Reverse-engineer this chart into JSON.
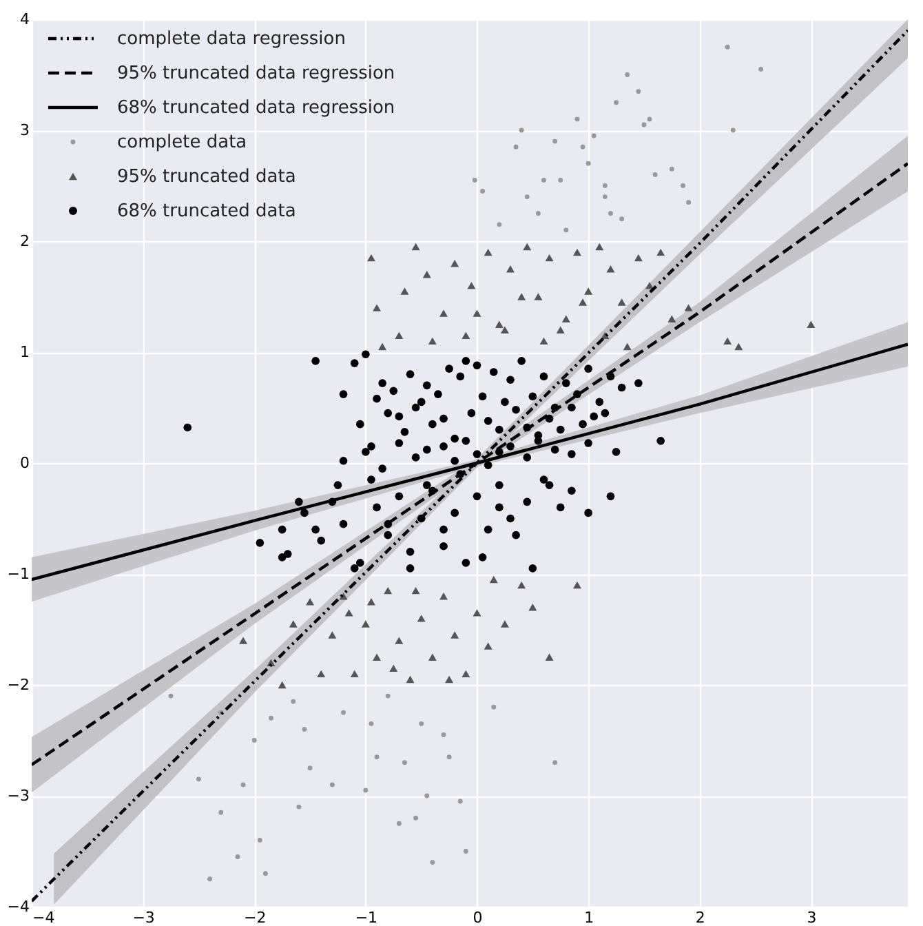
{
  "chart_data": {
    "type": "scatter",
    "xlim": [
      -4,
      3.87
    ],
    "ylim": [
      -4,
      4
    ],
    "xticks": [
      -4,
      -3,
      -2,
      -1,
      0,
      1,
      2,
      3
    ],
    "yticks": [
      -4,
      -3,
      -2,
      -1,
      0,
      1,
      2,
      3,
      4
    ],
    "grid": true,
    "legend": "top left",
    "series": [
      {
        "name": "complete data regression",
        "type": "line",
        "line_style": "dotted",
        "color": "#000000",
        "x": [
          -4,
          -3.8,
          -2,
          0,
          2,
          3.87
        ],
        "values": [
          -3.95,
          -3.75,
          -1.97,
          0.0,
          1.98,
          3.9
        ],
        "lower": [
          null,
          -3.98,
          -2.07,
          -0.04,
          1.88,
          3.65
        ],
        "upper": [
          null,
          -3.52,
          -1.87,
          0.04,
          2.08,
          4.0
        ]
      },
      {
        "name": "95% truncated data regression",
        "type": "line",
        "line_style": "dashed",
        "color": "#000000",
        "x": [
          -4,
          -2,
          0,
          2,
          3.87
        ],
        "values": [
          -2.72,
          -1.36,
          0.0,
          1.36,
          2.7
        ],
        "lower": [
          -2.97,
          -1.45,
          -0.04,
          1.27,
          2.45
        ],
        "upper": [
          -2.47,
          -1.27,
          0.04,
          1.45,
          2.95
        ]
      },
      {
        "name": "68% truncated data regression",
        "type": "line",
        "line_style": "solid",
        "color": "#000000",
        "x": [
          -4,
          -2,
          0,
          2,
          3.87
        ],
        "values": [
          -1.05,
          -0.52,
          0.0,
          0.53,
          1.07
        ],
        "lower": [
          -1.25,
          -0.61,
          -0.03,
          0.45,
          0.87
        ],
        "upper": [
          -0.85,
          -0.43,
          0.03,
          0.61,
          1.27
        ]
      },
      {
        "name": "complete data",
        "type": "scatter",
        "marker": "circle",
        "color": "#999999",
        "x": [
          -0.02,
          0.05,
          0.35,
          0.4,
          0.45,
          0.7,
          0.75,
          0.9,
          0.95,
          1.15,
          1.2,
          1.25,
          1.35,
          1.45,
          1.5,
          1.6,
          1.85,
          2.25,
          2.55,
          1.0,
          0.6,
          0.2,
          1.05,
          1.75,
          1.9,
          1.3,
          0.55,
          1.55,
          2.3,
          0.8,
          1.15,
          -2.75,
          -2.5,
          -2.4,
          -2.3,
          -2.3,
          -2.15,
          -2.1,
          -2.0,
          -1.95,
          -1.9,
          -1.6,
          -1.55,
          -1.5,
          -1.3,
          -1.2,
          -1.0,
          -0.95,
          -0.9,
          -0.7,
          -0.65,
          -0.55,
          -0.5,
          -0.4,
          -0.3,
          -0.25,
          -0.15,
          -0.1,
          0.15,
          0.7,
          -0.45,
          -1.65,
          -0.8,
          -1.85
        ],
        "values": [
          2.55,
          2.45,
          2.85,
          3.0,
          2.4,
          2.9,
          2.55,
          3.1,
          2.85,
          2.4,
          2.25,
          3.25,
          3.5,
          3.35,
          3.05,
          2.6,
          2.5,
          3.75,
          3.55,
          2.7,
          2.55,
          2.15,
          2.95,
          2.65,
          2.35,
          2.2,
          2.25,
          3.1,
          3.0,
          2.1,
          2.5,
          -2.1,
          -2.85,
          -3.75,
          -2.25,
          -3.15,
          -3.55,
          -2.9,
          -2.5,
          -3.4,
          -3.7,
          -3.1,
          -2.4,
          -2.75,
          -2.9,
          -2.25,
          -2.95,
          -2.35,
          -2.65,
          -3.25,
          -2.7,
          -3.2,
          -2.35,
          -3.6,
          -2.45,
          -2.65,
          -3.05,
          -3.5,
          -2.2,
          -2.7,
          -3.0,
          -2.15,
          -2.1,
          -2.3
        ]
      },
      {
        "name": "95% truncated data",
        "type": "scatter",
        "marker": "triangle",
        "color": "#555555",
        "x": [
          -0.95,
          -0.9,
          -0.7,
          -0.55,
          -0.45,
          -0.3,
          -0.2,
          -0.05,
          0.1,
          0.2,
          0.3,
          0.45,
          0.55,
          0.65,
          0.8,
          0.9,
          1.0,
          1.1,
          1.2,
          1.3,
          1.45,
          1.55,
          1.65,
          1.75,
          2.25,
          2.35,
          3.0,
          -0.85,
          -0.4,
          -0.1,
          0.25,
          0.6,
          0.95,
          1.15,
          1.35,
          1.9,
          -0.65,
          0.0,
          0.4,
          0.75,
          -2.1,
          -1.85,
          -1.75,
          -1.65,
          -1.5,
          -1.4,
          -1.3,
          -1.2,
          -1.1,
          -1.0,
          -0.9,
          -0.8,
          -0.7,
          -0.6,
          -0.5,
          -0.4,
          -0.3,
          -0.2,
          -0.1,
          0.0,
          0.1,
          0.25,
          0.4,
          0.5,
          0.65,
          0.9,
          -0.95,
          -0.55,
          -0.25,
          0.15,
          -1.15,
          -0.75
        ],
        "values": [
          1.85,
          1.4,
          1.15,
          1.95,
          1.7,
          1.35,
          1.8,
          1.6,
          1.9,
          1.25,
          1.75,
          1.95,
          1.5,
          1.85,
          1.3,
          1.9,
          1.55,
          1.95,
          1.75,
          1.45,
          1.85,
          1.6,
          1.9,
          1.3,
          1.1,
          1.05,
          1.25,
          1.05,
          1.1,
          1.15,
          1.2,
          1.1,
          1.45,
          1.15,
          1.05,
          1.4,
          1.55,
          1.35,
          1.5,
          1.2,
          -1.6,
          -1.8,
          -2.0,
          -1.45,
          -1.25,
          -1.9,
          -1.55,
          -1.2,
          -1.9,
          -1.45,
          -1.75,
          -1.15,
          -1.6,
          -1.95,
          -1.4,
          -1.75,
          -1.2,
          -1.55,
          -1.9,
          -1.35,
          -1.65,
          -1.45,
          -1.1,
          -1.3,
          -1.75,
          -1.1,
          -1.25,
          -1.15,
          -1.95,
          -1.05,
          -1.35,
          -1.85
        ]
      },
      {
        "name": "68% truncated data",
        "type": "scatter",
        "marker": "circle",
        "color": "#000000",
        "x": [
          -2.6,
          -1.45,
          -1.1,
          -1.2,
          -1.0,
          -0.9,
          -0.85,
          -0.75,
          -0.7,
          -0.6,
          -0.5,
          -0.45,
          -0.35,
          -0.25,
          -0.15,
          -0.1,
          0.0,
          0.05,
          0.15,
          0.25,
          0.3,
          0.4,
          0.5,
          0.6,
          0.7,
          0.8,
          0.9,
          1.0,
          1.1,
          1.2,
          1.3,
          1.45,
          1.65,
          -1.05,
          -0.95,
          -0.8,
          -0.65,
          -0.55,
          -0.4,
          -0.3,
          -0.2,
          -0.05,
          0.1,
          0.2,
          0.35,
          0.45,
          0.55,
          0.65,
          0.75,
          0.85,
          0.95,
          1.05,
          1.15,
          -1.2,
          -1.0,
          -0.85,
          -0.7,
          -0.55,
          -0.45,
          -0.3,
          -0.2,
          -0.1,
          0.0,
          0.1,
          0.2,
          0.3,
          0.45,
          0.55,
          0.7,
          0.85,
          1.0,
          1.25,
          -1.95,
          -1.75,
          -1.7,
          -1.55,
          -1.4,
          -1.3,
          -1.2,
          -1.05,
          -0.9,
          -0.8,
          -0.7,
          -0.6,
          -0.5,
          -0.4,
          -0.3,
          -0.2,
          -0.1,
          0.0,
          0.1,
          0.2,
          0.3,
          0.45,
          0.6,
          0.75,
          0.85,
          1.0,
          1.2,
          -1.75,
          -1.6,
          -1.45,
          -1.25,
          -1.1,
          -0.95,
          -0.8,
          -0.6,
          -0.45,
          -0.3,
          -0.15,
          0.05,
          0.2,
          0.35,
          0.5,
          0.65
        ],
        "values": [
          0.32,
          0.92,
          0.9,
          0.62,
          0.98,
          0.58,
          0.72,
          0.65,
          0.42,
          0.8,
          0.55,
          0.7,
          0.62,
          0.85,
          0.78,
          0.92,
          0.88,
          0.6,
          0.82,
          0.55,
          0.75,
          0.92,
          0.6,
          0.78,
          0.5,
          0.72,
          0.62,
          0.85,
          0.55,
          0.78,
          0.68,
          0.72,
          0.2,
          0.35,
          0.15,
          0.45,
          0.28,
          0.5,
          0.35,
          0.4,
          0.22,
          0.45,
          0.38,
          0.3,
          0.48,
          0.32,
          0.25,
          0.4,
          0.3,
          0.5,
          0.35,
          0.42,
          0.45,
          0.02,
          0.1,
          -0.05,
          0.18,
          0.05,
          0.12,
          0.15,
          0.02,
          0.2,
          0.08,
          -0.02,
          0.1,
          0.15,
          0.05,
          0.2,
          0.12,
          0.08,
          0.18,
          0.1,
          -0.72,
          -0.6,
          -0.82,
          -0.45,
          -0.7,
          -0.35,
          -0.55,
          -0.9,
          -0.4,
          -0.65,
          -0.3,
          -0.8,
          -0.5,
          -0.25,
          -0.75,
          -0.45,
          -0.9,
          -0.3,
          -0.6,
          -0.2,
          -0.5,
          -0.35,
          -0.15,
          -0.4,
          -0.25,
          -0.45,
          -0.3,
          -0.85,
          -0.35,
          -0.6,
          -0.2,
          -0.95,
          -0.15,
          -0.55,
          -0.95,
          -0.2,
          -0.6,
          -0.1,
          -0.85,
          -0.4,
          -0.65,
          -0.95,
          -0.2
        ]
      }
    ]
  }
}
